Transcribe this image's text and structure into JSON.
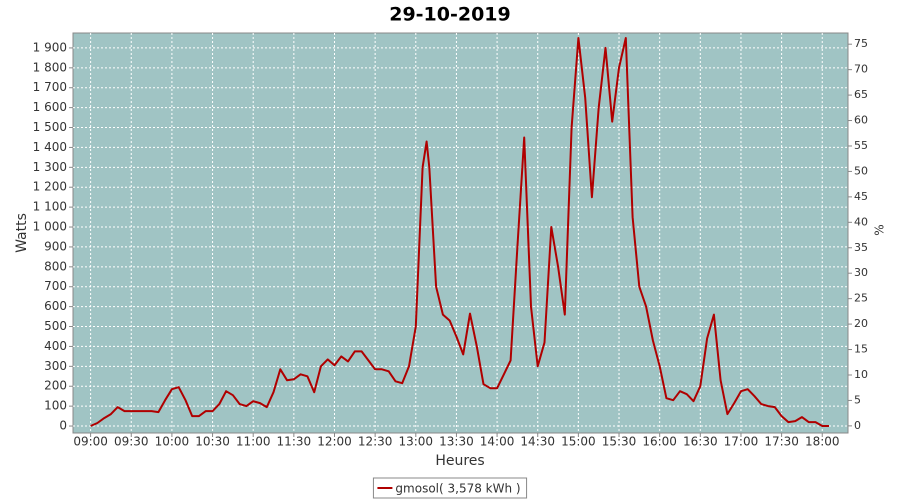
{
  "chart_data": {
    "type": "line",
    "title": "29-10-2019",
    "x_label": "Heures",
    "y_label": "Watts",
    "y2_label": "%",
    "x": [
      "09:00",
      "09:05",
      "09:10",
      "09:15",
      "09:20",
      "09:25",
      "09:30",
      "09:35",
      "09:40",
      "09:45",
      "09:50",
      "09:55",
      "10:00",
      "10:05",
      "10:10",
      "10:15",
      "10:20",
      "10:25",
      "10:30",
      "10:35",
      "10:40",
      "10:45",
      "10:50",
      "10:55",
      "11:00",
      "11:05",
      "11:10",
      "11:15",
      "11:20",
      "11:25",
      "11:30",
      "11:35",
      "11:40",
      "11:45",
      "11:50",
      "11:55",
      "12:00",
      "12:05",
      "12:10",
      "12:15",
      "12:20",
      "12:25",
      "12:30",
      "12:35",
      "12:40",
      "12:45",
      "12:50",
      "12:55",
      "13:00",
      "13:05",
      "13:08",
      "13:10",
      "13:15",
      "13:20",
      "13:25",
      "13:30",
      "13:35",
      "13:40",
      "13:45",
      "13:50",
      "13:55",
      "14:00",
      "14:05",
      "14:10",
      "14:15",
      "14:20",
      "14:25",
      "14:30",
      "14:35",
      "14:40",
      "14:45",
      "14:50",
      "14:55",
      "15:00",
      "15:05",
      "15:10",
      "15:15",
      "15:20",
      "15:25",
      "15:30",
      "15:35",
      "15:40",
      "15:45",
      "15:50",
      "15:55",
      "16:00",
      "16:05",
      "16:10",
      "16:15",
      "16:20",
      "16:25",
      "16:30",
      "16:35",
      "16:40",
      "16:45",
      "16:50",
      "16:55",
      "17:00",
      "17:05",
      "17:10",
      "17:15",
      "17:20",
      "17:25",
      "17:30",
      "17:35",
      "17:40",
      "17:45",
      "17:50",
      "17:55",
      "18:00",
      "18:05"
    ],
    "series": [
      {
        "name": "gmosol( 3,578 kWh )",
        "color": "#b00000",
        "values": [
          0,
          15,
          40,
          60,
          95,
          75,
          75,
          75,
          75,
          75,
          70,
          130,
          185,
          195,
          130,
          50,
          50,
          75,
          75,
          110,
          175,
          155,
          110,
          100,
          125,
          115,
          95,
          170,
          285,
          230,
          235,
          260,
          250,
          170,
          300,
          335,
          305,
          350,
          325,
          375,
          375,
          330,
          285,
          285,
          275,
          225,
          215,
          300,
          500,
          1300,
          1430,
          1300,
          700,
          560,
          530,
          450,
          360,
          565,
          400,
          210,
          190,
          190,
          260,
          330,
          900,
          1450,
          600,
          300,
          420,
          1000,
          800,
          560,
          1500,
          1950,
          1650,
          1150,
          1600,
          1900,
          1530,
          1800,
          1950,
          1050,
          700,
          600,
          430,
          300,
          140,
          130,
          175,
          160,
          125,
          200,
          440,
          560,
          230,
          60,
          115,
          175,
          185,
          150,
          110,
          100,
          95,
          50,
          20,
          25,
          45,
          20,
          20,
          0,
          0
        ]
      }
    ],
    "xlim": [
      "08:47",
      "18:19"
    ],
    "xticks": [
      "09:00",
      "09:30",
      "10:00",
      "10:30",
      "11:00",
      "11:30",
      "12:00",
      "12:30",
      "13:00",
      "13:30",
      "14:00",
      "14:30",
      "15:00",
      "15:30",
      "16:00",
      "16:30",
      "17:00",
      "17:30",
      "18:00"
    ],
    "ylim": [
      -35,
      1975
    ],
    "yticks": [
      0,
      100,
      200,
      300,
      400,
      500,
      600,
      700,
      800,
      900,
      {
        "value": 1000,
        "label": "1 000"
      },
      {
        "value": 1100,
        "label": "1 100"
      },
      {
        "value": 1200,
        "label": "1 200"
      },
      {
        "value": 1300,
        "label": "1 300"
      },
      {
        "value": 1400,
        "label": "1 400"
      },
      {
        "value": 1500,
        "label": "1 500"
      },
      {
        "value": 1600,
        "label": "1 600"
      },
      {
        "value": 1700,
        "label": "1 700"
      },
      {
        "value": 1800,
        "label": "1 800"
      },
      {
        "value": 1900,
        "label": "1 900"
      }
    ],
    "y2lim": [
      -1.4,
      77.2
    ],
    "y2ticks": [
      0,
      5,
      10,
      15,
      20,
      25,
      30,
      35,
      40,
      45,
      50,
      55,
      60,
      65,
      70,
      75
    ],
    "grid": true,
    "background": "#a0c4c4",
    "legend": "bottom"
  }
}
